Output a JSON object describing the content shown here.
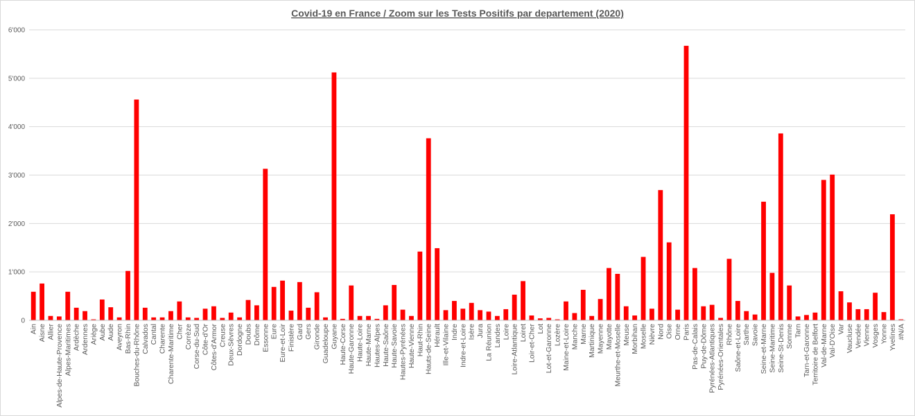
{
  "chart_data": {
    "type": "bar",
    "title": "Covid-19 en France / Zoom  sur les  Tests Positifs par departement (2020)",
    "xlabel": "",
    "ylabel": "",
    "ylim": [
      0,
      6000
    ],
    "yticks": [
      0,
      1000,
      2000,
      3000,
      4000,
      5000,
      6000
    ],
    "ytick_labels": [
      "0",
      "1'000",
      "2'000",
      "3'000",
      "4'000",
      "5'000",
      "6'000"
    ],
    "grid": true,
    "legend": "none",
    "bar_color": "#ff0000",
    "categories": [
      "Ain",
      "Aisne",
      "Allier",
      "Alpes-de-Haute-Provence",
      "Alpes-Maritimes",
      "Ardèche",
      "Ardennes",
      "Ariège",
      "Aube",
      "Aude",
      "Aveyron",
      "Bas-Rhin",
      "Bouches-du-Rhône",
      "Calvados",
      "Cantal",
      "Charente",
      "Charente-Maritime",
      "Cher",
      "Corrèze",
      "Corse-du-Sud",
      "Côte-d'Or",
      "Côtes-d'Armor",
      "Creuse",
      "Deux-Sèvres",
      "Dordogne",
      "Doubs",
      "Drôme",
      "Essonne",
      "Eure",
      "Eure-et-Loir",
      "Finistère",
      "Gard",
      "Gers",
      "Gironde",
      "Guadeloupe",
      "Guyane",
      "Haute-Corse",
      "Haute-Garonne",
      "Haute-Loire",
      "Haute-Marne",
      "Hautes-Alpes",
      "Haute-Saône",
      "Haute-Savoie",
      "Hautes-Pyrénées",
      "Haute-Vienne",
      "Haut-Rhin",
      "Hauts-de-Seine",
      "Hérault",
      "Ille-et-Vilaine",
      "Indre",
      "Indre-et-Loire",
      "Isère",
      "Jura",
      "La Réunion",
      "Landes",
      "Loire",
      "Loire-Atlantique",
      "Loiret",
      "Loir-et-Cher",
      "Lot",
      "Lot-et-Garonne",
      "Lozère",
      "Maine-et-Loire",
      "Manche",
      "Marne",
      "Martinique",
      "Mayenne",
      "Mayotte",
      "Meurthe-et-Moselle",
      "Meuse",
      "Morbihan",
      "Moselle",
      "Nièvre",
      "Nord",
      "Oise",
      "Orne",
      "Paris",
      "Pas-de-Calais",
      "Puy-de-Dôme",
      "Pyrénées-Atlantiques",
      "Pyrénées-Orientales",
      "Rhône",
      "Saône-et-Loire",
      "Sarthe",
      "Savoie",
      "Seine-et-Marne",
      "Seine-Maritime",
      "Seine-St-Denis",
      "Somme",
      "Tarn",
      "Tarn-et-Garonne",
      "Territoire de Belfort",
      "Val-de-Marne",
      "Val-D'Oise",
      "Var",
      "Vaucluse",
      "Vendée",
      "Vienne",
      "Vosges",
      "Yonne",
      "Yvelines",
      "#N/A"
    ],
    "values": [
      590,
      760,
      90,
      80,
      590,
      260,
      190,
      20,
      430,
      270,
      60,
      1020,
      4560,
      260,
      60,
      60,
      190,
      390,
      60,
      50,
      240,
      290,
      50,
      160,
      60,
      420,
      310,
      3130,
      690,
      820,
      200,
      790,
      260,
      580,
      60,
      5120,
      30,
      720,
      90,
      90,
      30,
      310,
      730,
      220,
      90,
      1420,
      3760,
      1490,
      210,
      400,
      240,
      360,
      210,
      180,
      90,
      230,
      530,
      810,
      100,
      40,
      50,
      20,
      390,
      150,
      630,
      90,
      440,
      1080,
      960,
      290,
      100,
      1310,
      240,
      2690,
      1610,
      220,
      5670,
      1080,
      290,
      320,
      50,
      1270,
      400,
      190,
      120,
      2450,
      980,
      3860,
      720,
      80,
      110,
      160,
      2900,
      3010,
      600,
      370,
      230,
      230,
      570,
      170,
      2190,
      20
    ]
  }
}
